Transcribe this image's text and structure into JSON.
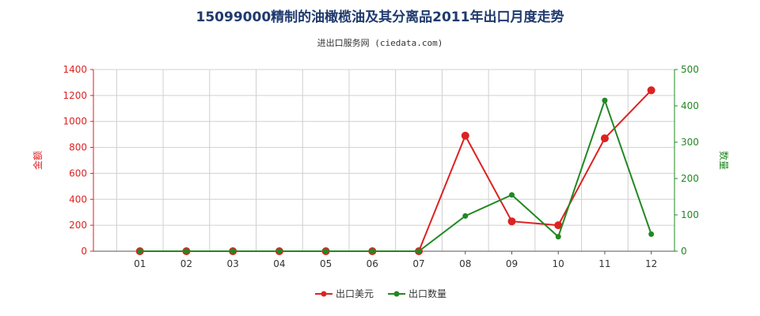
{
  "chart_data": {
    "type": "line",
    "title": "15099000精制的油橄榄油及其分离品2011年出口月度走势",
    "subtitle": "进出口服务网 (ciedata.com)",
    "categories": [
      "01",
      "02",
      "03",
      "04",
      "05",
      "06",
      "07",
      "08",
      "09",
      "10",
      "11",
      "12"
    ],
    "left_axis": {
      "label": "金额",
      "ylim": [
        0,
        1400
      ],
      "ticks": [
        0,
        200,
        400,
        600,
        800,
        1000,
        1200,
        1400
      ],
      "color": "#dd2222"
    },
    "right_axis": {
      "label": "数量",
      "ylim": [
        0,
        500
      ],
      "ticks": [
        0,
        100,
        200,
        300,
        400,
        500
      ],
      "color": "#228822"
    },
    "series": [
      {
        "name": "出口美元",
        "axis": "left",
        "color": "#dd2222",
        "values": [
          0,
          0,
          0,
          0,
          0,
          0,
          0,
          890,
          230,
          200,
          870,
          1240
        ]
      },
      {
        "name": "出口数量",
        "axis": "right",
        "color": "#228822",
        "values": [
          0,
          0,
          0,
          0,
          0,
          0,
          0,
          97,
          155,
          40,
          415,
          47
        ]
      }
    ],
    "grid": true,
    "legend_position": "bottom-center"
  }
}
